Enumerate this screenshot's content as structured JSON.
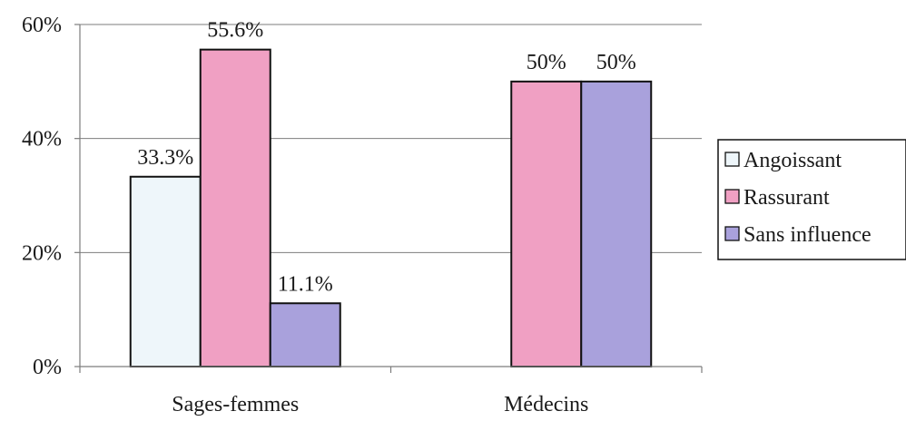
{
  "chart_data": {
    "type": "bar",
    "title": "",
    "xlabel": "",
    "ylabel": "",
    "categories": [
      "Sages-femmes",
      "Médecins"
    ],
    "series": [
      {
        "name": "Angoissant",
        "values": [
          33.3,
          0
        ],
        "labels": [
          "33.3%",
          ""
        ],
        "color": "#eef6fa"
      },
      {
        "name": "Rassurant",
        "values": [
          55.6,
          50
        ],
        "labels": [
          "55.6%",
          "50%"
        ],
        "color": "#f0a0c3"
      },
      {
        "name": "Sans influence",
        "values": [
          11.1,
          50
        ],
        "labels": [
          "11.1%",
          "50%"
        ],
        "color": "#a9a1dc"
      }
    ],
    "ylim": [
      0,
      60
    ],
    "yticks": [
      0,
      20,
      40,
      60
    ],
    "ytick_labels": [
      "0%",
      "20%",
      "40%",
      "60%"
    ],
    "grid": true,
    "legend_position": "right"
  }
}
